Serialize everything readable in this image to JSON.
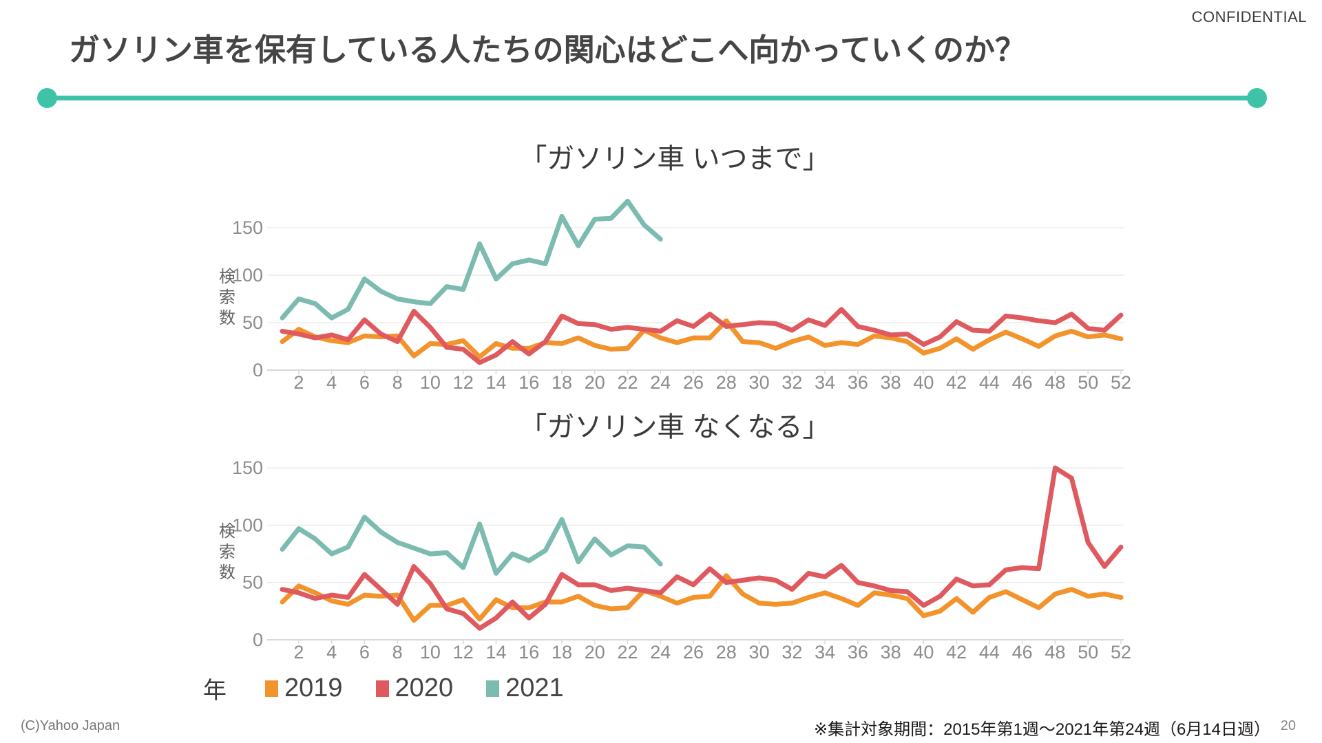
{
  "slide": {
    "confidential": "CONFIDENTIAL",
    "title": "ガソリン車を保有している人たちの関心はどこへ向かっていくのか？",
    "legend": {
      "axis_label": "年",
      "items": [
        {
          "label": "2019",
          "color": "#F2932C"
        },
        {
          "label": "2020",
          "color": "#DF5A5F"
        },
        {
          "label": "2021",
          "color": "#7CBBAF"
        }
      ]
    },
    "footer": {
      "copyright": "(C)Yahoo Japan",
      "note": "※集計対象期間：2015年第1週～2021年第24週（6月14日週）",
      "page_number": "20"
    }
  },
  "theme": {
    "accent_teal": "#3EC3A8",
    "series_2019": "#F2932C",
    "series_2020": "#DF5A5F",
    "series_2021": "#7CBBAF",
    "grid_line": "#ECECEC",
    "axis_line": "#D9D9D9",
    "tick_text": "#8C8C8C",
    "ylabel_text": "#666666"
  },
  "chart_data": [
    {
      "type": "line",
      "title": "「ガソリン車 いつまで」",
      "ylabel": "検索数",
      "xlabel": "",
      "x_range": [
        1,
        52
      ],
      "x_ticks": [
        2,
        4,
        6,
        8,
        10,
        12,
        14,
        16,
        18,
        20,
        22,
        24,
        26,
        28,
        30,
        32,
        34,
        36,
        38,
        40,
        42,
        44,
        46,
        48,
        50,
        52
      ],
      "yticks": [
        0,
        50,
        100,
        150
      ],
      "ylim": [
        0,
        185
      ],
      "grid": true,
      "legend_position": "bottom",
      "series": [
        {
          "name": "2019",
          "color": "#F2932C",
          "values": [
            30,
            43,
            35,
            31,
            29,
            36,
            35,
            36,
            15,
            28,
            27,
            31,
            14,
            28,
            23,
            23,
            29,
            28,
            34,
            26,
            22,
            23,
            42,
            34,
            29,
            34,
            34,
            52,
            30,
            29,
            23,
            30,
            35,
            26,
            29,
            27,
            36,
            34,
            30,
            18,
            23,
            33,
            22,
            32,
            40,
            33,
            25,
            36,
            41,
            35,
            37,
            33
          ]
        },
        {
          "name": "2020",
          "color": "#DF5A5F",
          "values": [
            41,
            38,
            34,
            37,
            32,
            53,
            38,
            30,
            62,
            45,
            24,
            22,
            8,
            16,
            30,
            17,
            30,
            57,
            49,
            48,
            43,
            45,
            43,
            41,
            52,
            46,
            59,
            46,
            48,
            50,
            49,
            42,
            53,
            47,
            64,
            46,
            42,
            37,
            38,
            27,
            35,
            51,
            42,
            41,
            57,
            55,
            52,
            50,
            59,
            44,
            42,
            58
          ]
        },
        {
          "name": "2021",
          "color": "#7CBBAF",
          "values": [
            55,
            75,
            70,
            55,
            64,
            96,
            83,
            75,
            72,
            70,
            88,
            85,
            133,
            96,
            112,
            116,
            112,
            162,
            131,
            159,
            160,
            178,
            153,
            138
          ]
        }
      ]
    },
    {
      "type": "line",
      "title": "「ガソリン車 なくなる」",
      "ylabel": "検索数",
      "xlabel": "",
      "x_range": [
        1,
        52
      ],
      "x_ticks": [
        2,
        4,
        6,
        8,
        10,
        12,
        14,
        16,
        18,
        20,
        22,
        24,
        26,
        28,
        30,
        32,
        34,
        36,
        38,
        40,
        42,
        44,
        46,
        48,
        50,
        52
      ],
      "yticks": [
        0,
        50,
        100,
        150
      ],
      "ylim": [
        0,
        160
      ],
      "grid": true,
      "legend_position": "bottom",
      "series": [
        {
          "name": "2019",
          "color": "#F2932C",
          "values": [
            33,
            47,
            41,
            34,
            31,
            39,
            38,
            39,
            17,
            30,
            30,
            35,
            18,
            35,
            28,
            28,
            33,
            33,
            38,
            30,
            27,
            28,
            43,
            38,
            32,
            37,
            38,
            56,
            40,
            32,
            31,
            32,
            37,
            41,
            36,
            30,
            41,
            39,
            36,
            21,
            25,
            36,
            24,
            37,
            42,
            35,
            28,
            40,
            44,
            38,
            40,
            37
          ]
        },
        {
          "name": "2020",
          "color": "#DF5A5F",
          "values": [
            44,
            41,
            36,
            39,
            37,
            57,
            44,
            31,
            64,
            49,
            27,
            23,
            10,
            19,
            33,
            19,
            31,
            57,
            48,
            48,
            43,
            45,
            43,
            41,
            55,
            48,
            62,
            50,
            52,
            54,
            52,
            44,
            58,
            55,
            65,
            50,
            47,
            43,
            42,
            30,
            38,
            53,
            47,
            48,
            61,
            63,
            62,
            150,
            141,
            85,
            64,
            81
          ]
        },
        {
          "name": "2021",
          "color": "#7CBBAF",
          "values": [
            79,
            97,
            88,
            75,
            81,
            107,
            94,
            85,
            80,
            75,
            76,
            63,
            101,
            58,
            75,
            69,
            78,
            105,
            68,
            88,
            74,
            82,
            81,
            66
          ]
        }
      ]
    }
  ]
}
